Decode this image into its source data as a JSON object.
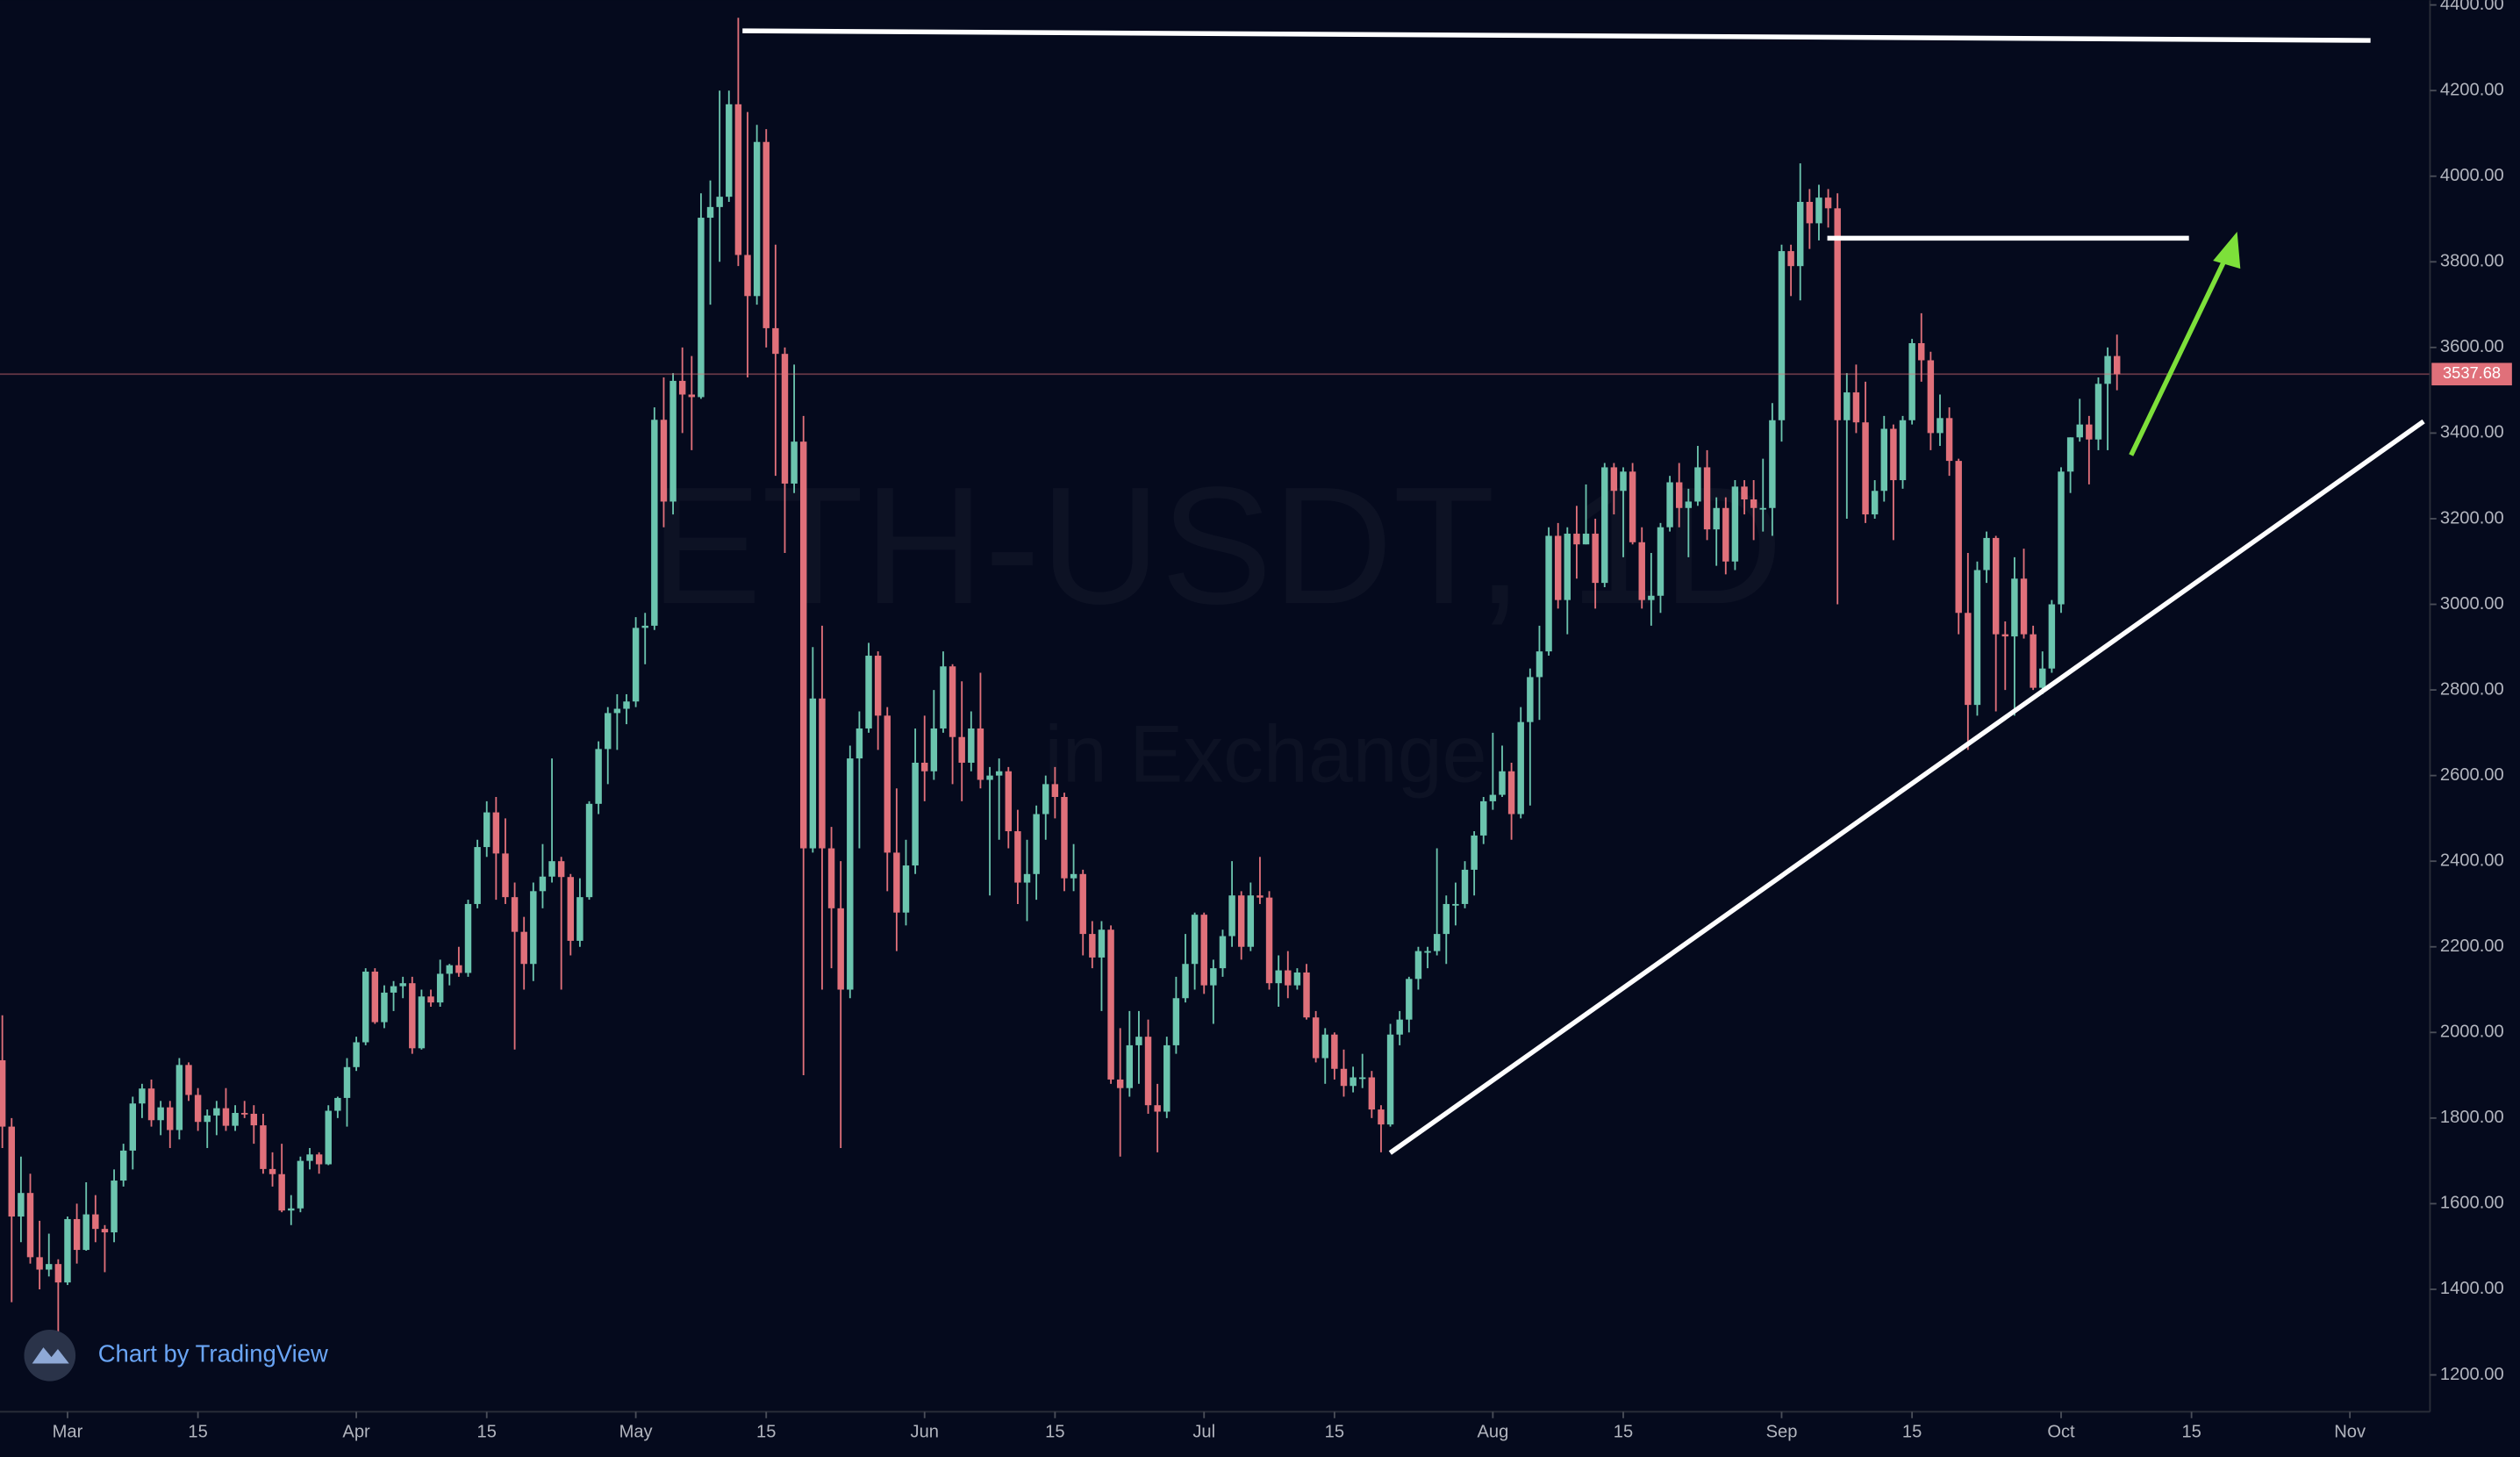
{
  "chart_data": {
    "type": "candlestick",
    "title": "ETH-USDT, 1D",
    "subtitle": "in Exchange",
    "credit": "Chart by TradingView",
    "up_color": "#6bc4ae",
    "down_color": "#e0707a",
    "xlim": [
      -0.25,
      260.6
    ],
    "ylim": [
      1114,
      4411
    ],
    "xticks": [
      {
        "value": 7,
        "label": "Mar"
      },
      {
        "value": 21,
        "label": "15"
      },
      {
        "value": 38,
        "label": "Apr"
      },
      {
        "value": 52,
        "label": "15"
      },
      {
        "value": 68,
        "label": "May"
      },
      {
        "value": 82,
        "label": "15"
      },
      {
        "value": 99,
        "label": "Jun"
      },
      {
        "value": 113,
        "label": "15"
      },
      {
        "value": 129,
        "label": "Jul"
      },
      {
        "value": 143,
        "label": "15"
      },
      {
        "value": 160,
        "label": "Aug"
      },
      {
        "value": 174,
        "label": "15"
      },
      {
        "value": 191,
        "label": "Sep"
      },
      {
        "value": 205,
        "label": "15"
      },
      {
        "value": 221,
        "label": "Oct"
      },
      {
        "value": 235,
        "label": "15"
      },
      {
        "value": 252,
        "label": "Nov"
      }
    ],
    "yticks": [
      {
        "value": 1200,
        "label": "1200.00"
      },
      {
        "value": 1400,
        "label": "1400.00"
      },
      {
        "value": 1600,
        "label": "1600.00"
      },
      {
        "value": 1800,
        "label": "1800.00"
      },
      {
        "value": 2000,
        "label": "2000.00"
      },
      {
        "value": 2200,
        "label": "2200.00"
      },
      {
        "value": 2400,
        "label": "2400.00"
      },
      {
        "value": 2600,
        "label": "2600.00"
      },
      {
        "value": 2800,
        "label": "2800.00"
      },
      {
        "value": 3000,
        "label": "3000.00"
      },
      {
        "value": 3200,
        "label": "3200.00"
      },
      {
        "value": 3400,
        "label": "3400.00"
      },
      {
        "value": 3600,
        "label": "3600.00"
      },
      {
        "value": 3800,
        "label": "3800.00"
      },
      {
        "value": 4000,
        "label": "4000.00"
      },
      {
        "value": 4200,
        "label": "4200.00"
      },
      {
        "value": 4400,
        "label": "4400.00"
      }
    ],
    "candles": [
      [
        1935,
        2040,
        1730,
        1780
      ],
      [
        1780,
        1800,
        1370,
        1570
      ],
      [
        1570,
        1710,
        1510,
        1625
      ],
      [
        1625,
        1670,
        1460,
        1475
      ],
      [
        1475,
        1560,
        1400,
        1446
      ],
      [
        1446,
        1530,
        1430,
        1459
      ],
      [
        1459,
        1470,
        1290,
        1416
      ],
      [
        1416,
        1570,
        1410,
        1564
      ],
      [
        1564,
        1600,
        1460,
        1492
      ],
      [
        1492,
        1650,
        1490,
        1575
      ],
      [
        1575,
        1620,
        1510,
        1541
      ],
      [
        1541,
        1550,
        1440,
        1533
      ],
      [
        1533,
        1680,
        1510,
        1654
      ],
      [
        1654,
        1740,
        1640,
        1724
      ],
      [
        1724,
        1850,
        1680,
        1834
      ],
      [
        1834,
        1880,
        1800,
        1869
      ],
      [
        1869,
        1890,
        1780,
        1795
      ],
      [
        1795,
        1840,
        1760,
        1825
      ],
      [
        1825,
        1840,
        1730,
        1772
      ],
      [
        1772,
        1940,
        1750,
        1924
      ],
      [
        1924,
        1930,
        1840,
        1854
      ],
      [
        1854,
        1870,
        1770,
        1791
      ],
      [
        1791,
        1820,
        1730,
        1806
      ],
      [
        1806,
        1840,
        1760,
        1823
      ],
      [
        1823,
        1870,
        1770,
        1782
      ],
      [
        1782,
        1830,
        1770,
        1812
      ],
      [
        1812,
        1840,
        1800,
        1810
      ],
      [
        1810,
        1830,
        1740,
        1783
      ],
      [
        1783,
        1810,
        1670,
        1681
      ],
      [
        1681,
        1720,
        1640,
        1669
      ],
      [
        1669,
        1740,
        1580,
        1584
      ],
      [
        1584,
        1620,
        1550,
        1589
      ],
      [
        1589,
        1710,
        1580,
        1700
      ],
      [
        1700,
        1730,
        1680,
        1715
      ],
      [
        1715,
        1720,
        1670,
        1692
      ],
      [
        1692,
        1830,
        1690,
        1817
      ],
      [
        1817,
        1850,
        1800,
        1847
      ],
      [
        1847,
        1940,
        1780,
        1919
      ],
      [
        1919,
        1990,
        1910,
        1977
      ],
      [
        1977,
        2150,
        1970,
        2142
      ],
      [
        2142,
        2150,
        2020,
        2024
      ],
      [
        2024,
        2110,
        2010,
        2093
      ],
      [
        2093,
        2120,
        2050,
        2108
      ],
      [
        2108,
        2130,
        2080,
        2115
      ],
      [
        2115,
        2130,
        1950,
        1963
      ],
      [
        1963,
        2100,
        1960,
        2084
      ],
      [
        2084,
        2100,
        2060,
        2070
      ],
      [
        2070,
        2170,
        2060,
        2137
      ],
      [
        2137,
        2160,
        2110,
        2157
      ],
      [
        2157,
        2200,
        2130,
        2139
      ],
      [
        2139,
        2310,
        2130,
        2300
      ],
      [
        2300,
        2450,
        2290,
        2433
      ],
      [
        2433,
        2540,
        2410,
        2514
      ],
      [
        2514,
        2550,
        2310,
        2418
      ],
      [
        2418,
        2500,
        2300,
        2316
      ],
      [
        2316,
        2350,
        1960,
        2235
      ],
      [
        2235,
        2270,
        2100,
        2160
      ],
      [
        2160,
        2350,
        2120,
        2330
      ],
      [
        2330,
        2440,
        2290,
        2364
      ],
      [
        2364,
        2640,
        2350,
        2400
      ],
      [
        2400,
        2410,
        2100,
        2363
      ],
      [
        2363,
        2370,
        2180,
        2214
      ],
      [
        2214,
        2360,
        2200,
        2316
      ],
      [
        2316,
        2540,
        2310,
        2534
      ],
      [
        2534,
        2680,
        2510,
        2662
      ],
      [
        2662,
        2760,
        2580,
        2746
      ],
      [
        2746,
        2790,
        2660,
        2756
      ],
      [
        2756,
        2790,
        2720,
        2773
      ],
      [
        2773,
        2970,
        2760,
        2945
      ],
      [
        2945,
        2980,
        2860,
        2950
      ],
      [
        2950,
        3460,
        2940,
        3431
      ],
      [
        3431,
        3530,
        3180,
        3240
      ],
      [
        3240,
        3540,
        3210,
        3522
      ],
      [
        3522,
        3600,
        3400,
        3490
      ],
      [
        3490,
        3580,
        3360,
        3484
      ],
      [
        3484,
        3960,
        3480,
        3903
      ],
      [
        3903,
        3990,
        3700,
        3928
      ],
      [
        3928,
        4200,
        3800,
        3952
      ],
      [
        3952,
        4200,
        3940,
        4168
      ],
      [
        4168,
        4370,
        3790,
        3816
      ],
      [
        3816,
        4150,
        3530,
        3720
      ],
      [
        3720,
        4120,
        3700,
        4080
      ],
      [
        4080,
        4110,
        3600,
        3645
      ],
      [
        3645,
        3840,
        3300,
        3585
      ],
      [
        3585,
        3600,
        3120,
        3282
      ],
      [
        3282,
        3560,
        3260,
        3380
      ],
      [
        3380,
        3440,
        1900,
        2430
      ],
      [
        2430,
        2900,
        2420,
        2780
      ],
      [
        2780,
        2950,
        2100,
        2430
      ],
      [
        2430,
        2480,
        2150,
        2290
      ],
      [
        2290,
        2400,
        1730,
        2100
      ],
      [
        2100,
        2670,
        2080,
        2640
      ],
      [
        2640,
        2750,
        2430,
        2710
      ],
      [
        2710,
        2910,
        2700,
        2880
      ],
      [
        2880,
        2890,
        2660,
        2740
      ],
      [
        2740,
        2760,
        2330,
        2420
      ],
      [
        2420,
        2570,
        2190,
        2280
      ],
      [
        2280,
        2450,
        2250,
        2390
      ],
      [
        2390,
        2710,
        2370,
        2630
      ],
      [
        2630,
        2740,
        2540,
        2610
      ],
      [
        2610,
        2800,
        2590,
        2710
      ],
      [
        2710,
        2890,
        2700,
        2855
      ],
      [
        2855,
        2860,
        2580,
        2690
      ],
      [
        2690,
        2820,
        2540,
        2630
      ],
      [
        2630,
        2750,
        2610,
        2710
      ],
      [
        2710,
        2840,
        2570,
        2590
      ],
      [
        2590,
        2620,
        2320,
        2600
      ],
      [
        2600,
        2640,
        2450,
        2610
      ],
      [
        2610,
        2620,
        2430,
        2470
      ],
      [
        2470,
        2520,
        2300,
        2350
      ],
      [
        2350,
        2450,
        2260,
        2370
      ],
      [
        2370,
        2530,
        2310,
        2510
      ],
      [
        2510,
        2600,
        2450,
        2580
      ],
      [
        2580,
        2620,
        2500,
        2550
      ],
      [
        2550,
        2560,
        2330,
        2360
      ],
      [
        2360,
        2440,
        2330,
        2370
      ],
      [
        2370,
        2380,
        2180,
        2230
      ],
      [
        2230,
        2260,
        2150,
        2175
      ],
      [
        2175,
        2260,
        2050,
        2240
      ],
      [
        2240,
        2250,
        1880,
        1890
      ],
      [
        1890,
        2010,
        1710,
        1870
      ],
      [
        1870,
        2050,
        1850,
        1970
      ],
      [
        1970,
        2050,
        1880,
        1990
      ],
      [
        1990,
        2030,
        1810,
        1830
      ],
      [
        1830,
        1880,
        1720,
        1815
      ],
      [
        1815,
        1990,
        1800,
        1970
      ],
      [
        1970,
        2130,
        1950,
        2080
      ],
      [
        2080,
        2230,
        2070,
        2160
      ],
      [
        2160,
        2280,
        2100,
        2275
      ],
      [
        2275,
        2280,
        2090,
        2110
      ],
      [
        2110,
        2170,
        2020,
        2150
      ],
      [
        2150,
        2240,
        2130,
        2225
      ],
      [
        2225,
        2400,
        2200,
        2320
      ],
      [
        2320,
        2330,
        2170,
        2200
      ],
      [
        2200,
        2350,
        2190,
        2320
      ],
      [
        2320,
        2410,
        2300,
        2315
      ],
      [
        2315,
        2330,
        2100,
        2115
      ],
      [
        2115,
        2180,
        2060,
        2145
      ],
      [
        2145,
        2190,
        2080,
        2110
      ],
      [
        2110,
        2150,
        2100,
        2140
      ],
      [
        2140,
        2160,
        2030,
        2035
      ],
      [
        2035,
        2050,
        1930,
        1940
      ],
      [
        1940,
        2010,
        1880,
        1995
      ],
      [
        1995,
        2000,
        1890,
        1915
      ],
      [
        1915,
        1960,
        1850,
        1875
      ],
      [
        1875,
        1920,
        1860,
        1895
      ],
      [
        1895,
        1950,
        1870,
        1895
      ],
      [
        1895,
        1910,
        1800,
        1820
      ],
      [
        1820,
        1830,
        1720,
        1785
      ],
      [
        1785,
        2020,
        1780,
        1995
      ],
      [
        1995,
        2050,
        1970,
        2030
      ],
      [
        2030,
        2130,
        2000,
        2125
      ],
      [
        2125,
        2200,
        2100,
        2190
      ],
      [
        2190,
        2200,
        2150,
        2190
      ],
      [
        2190,
        2430,
        2180,
        2230
      ],
      [
        2230,
        2320,
        2160,
        2300
      ],
      [
        2300,
        2350,
        2250,
        2300
      ],
      [
        2300,
        2400,
        2290,
        2380
      ],
      [
        2380,
        2470,
        2320,
        2460
      ],
      [
        2460,
        2550,
        2440,
        2540
      ],
      [
        2540,
        2700,
        2520,
        2555
      ],
      [
        2555,
        2670,
        2550,
        2610
      ],
      [
        2610,
        2630,
        2450,
        2510
      ],
      [
        2510,
        2760,
        2500,
        2725
      ],
      [
        2725,
        2850,
        2530,
        2830
      ],
      [
        2830,
        2950,
        2730,
        2890
      ],
      [
        2890,
        3180,
        2880,
        3160
      ],
      [
        3160,
        3190,
        2990,
        3010
      ],
      [
        3010,
        3180,
        2930,
        3165
      ],
      [
        3165,
        3230,
        3060,
        3140
      ],
      [
        3140,
        3280,
        3140,
        3165
      ],
      [
        3165,
        3200,
        2990,
        3050
      ],
      [
        3050,
        3330,
        3040,
        3320
      ],
      [
        3320,
        3330,
        3210,
        3265
      ],
      [
        3265,
        3320,
        3110,
        3310
      ],
      [
        3310,
        3330,
        3140,
        3145
      ],
      [
        3145,
        3180,
        2990,
        3010
      ],
      [
        3010,
        3120,
        2950,
        3020
      ],
      [
        3020,
        3190,
        2980,
        3180
      ],
      [
        3180,
        3300,
        3170,
        3285
      ],
      [
        3285,
        3330,
        3180,
        3225
      ],
      [
        3225,
        3270,
        3110,
        3240
      ],
      [
        3240,
        3370,
        3230,
        3320
      ],
      [
        3320,
        3360,
        3150,
        3175
      ],
      [
        3175,
        3250,
        3090,
        3225
      ],
      [
        3225,
        3250,
        3070,
        3100
      ],
      [
        3100,
        3290,
        3080,
        3275
      ],
      [
        3275,
        3290,
        3210,
        3245
      ],
      [
        3245,
        3290,
        3150,
        3225
      ],
      [
        3225,
        3340,
        3170,
        3225
      ],
      [
        3225,
        3470,
        3160,
        3430
      ],
      [
        3430,
        3840,
        3380,
        3825
      ],
      [
        3825,
        3840,
        3720,
        3790
      ],
      [
        3790,
        4030,
        3710,
        3940
      ],
      [
        3940,
        3970,
        3830,
        3890
      ],
      [
        3890,
        3980,
        3850,
        3950
      ],
      [
        3950,
        3970,
        3880,
        3925
      ],
      [
        3925,
        3960,
        3000,
        3430
      ],
      [
        3430,
        3540,
        3200,
        3495
      ],
      [
        3495,
        3560,
        3400,
        3425
      ],
      [
        3425,
        3520,
        3190,
        3210
      ],
      [
        3210,
        3290,
        3200,
        3265
      ],
      [
        3265,
        3440,
        3240,
        3410
      ],
      [
        3410,
        3420,
        3150,
        3290
      ],
      [
        3290,
        3440,
        3270,
        3430
      ],
      [
        3430,
        3620,
        3420,
        3610
      ],
      [
        3610,
        3680,
        3520,
        3570
      ],
      [
        3570,
        3590,
        3360,
        3400
      ],
      [
        3400,
        3490,
        3370,
        3435
      ],
      [
        3435,
        3460,
        3300,
        3335
      ],
      [
        3335,
        3340,
        2930,
        2980
      ],
      [
        2980,
        3120,
        2660,
        2765
      ],
      [
        2765,
        3100,
        2740,
        3080
      ],
      [
        3080,
        3170,
        3050,
        3155
      ],
      [
        3155,
        3160,
        2750,
        2930
      ],
      [
        2930,
        2960,
        2800,
        2925
      ],
      [
        2925,
        3110,
        2740,
        3060
      ],
      [
        3060,
        3130,
        2920,
        2930
      ],
      [
        2930,
        2950,
        2800,
        2805
      ],
      [
        2805,
        2890,
        2790,
        2850
      ],
      [
        2850,
        3010,
        2840,
        3000
      ],
      [
        3000,
        3320,
        2980,
        3310
      ],
      [
        3310,
        3390,
        3260,
        3390
      ],
      [
        3390,
        3480,
        3380,
        3420
      ],
      [
        3420,
        3440,
        3280,
        3385
      ],
      [
        3385,
        3530,
        3360,
        3515
      ],
      [
        3515,
        3600,
        3360,
        3580
      ],
      [
        3580,
        3630,
        3500,
        3537.68
      ]
    ]
  }
}
